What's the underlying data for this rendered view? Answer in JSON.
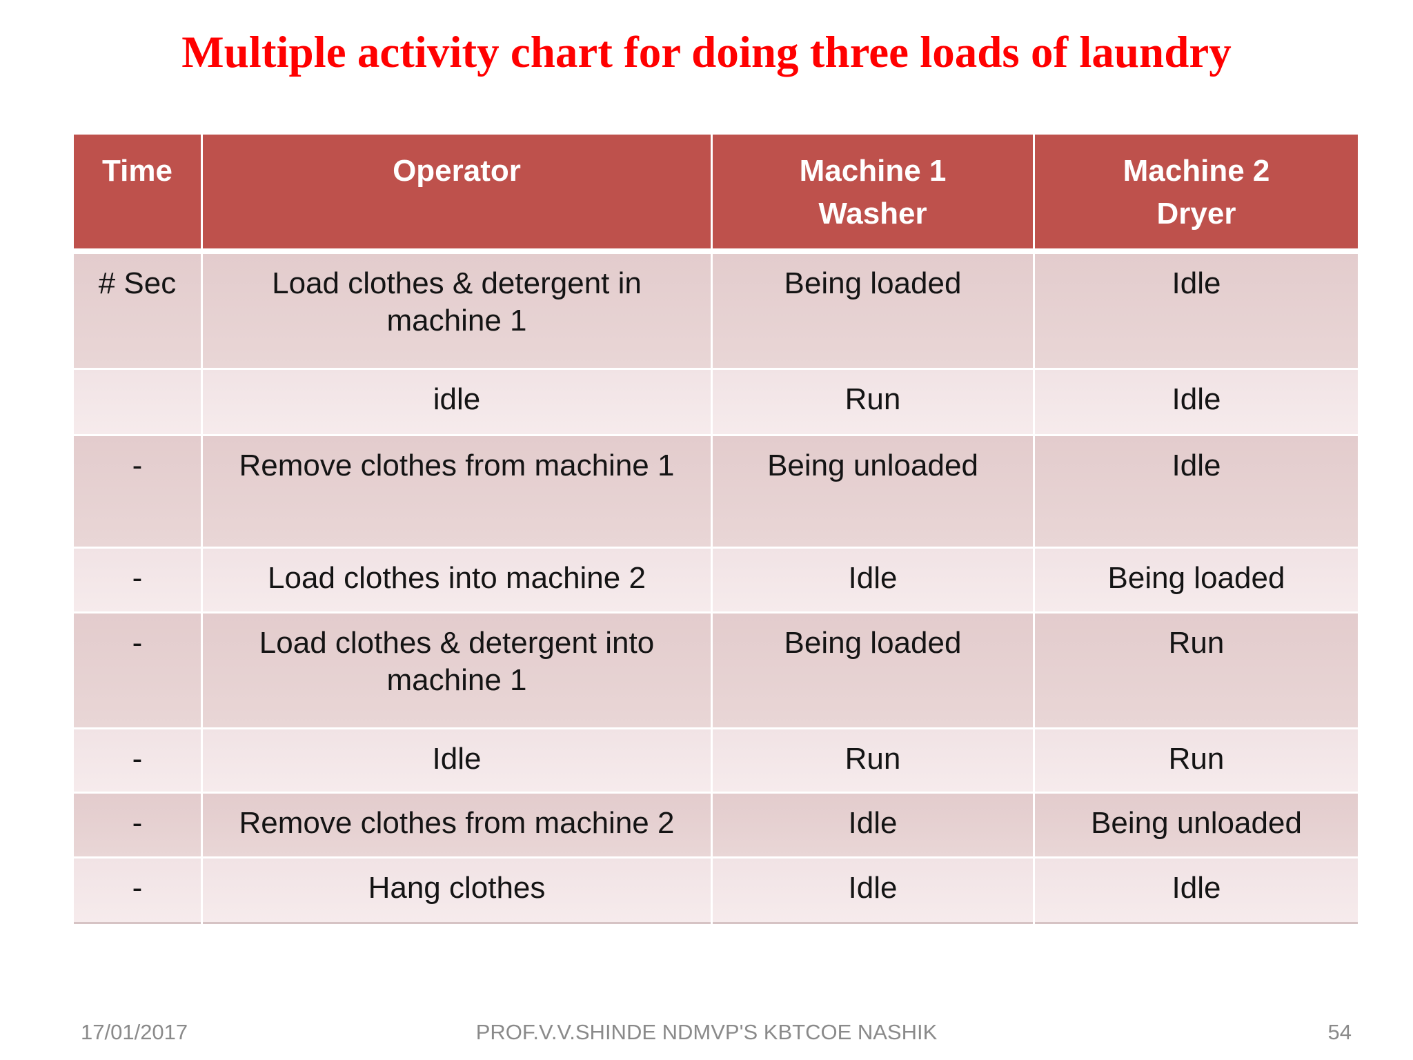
{
  "slide": {
    "title": "Multiple activity chart for doing three loads of laundry"
  },
  "table": {
    "header": {
      "time": "Time",
      "operator": "Operator",
      "machine1_line1": "Machine 1",
      "machine1_line2": "Washer",
      "machine2_line1": "Machine 2",
      "machine2_line2": "Dryer"
    },
    "rows": [
      {
        "time": "# Sec",
        "operator": "Load clothes & detergent in machine 1",
        "machine1": "Being loaded",
        "machine2": "Idle"
      },
      {
        "time": "",
        "operator": "idle",
        "machine1": "Run",
        "machine2": "Idle"
      },
      {
        "time": "-",
        "operator": "Remove clothes from machine 1",
        "machine1": "Being unloaded",
        "machine2": "Idle"
      },
      {
        "time": "-",
        "operator": "Load clothes into machine 2",
        "machine1": "Idle",
        "machine2": "Being loaded"
      },
      {
        "time": "-",
        "operator": "Load clothes & detergent into machine 1",
        "machine1": "Being loaded",
        "machine2": "Run"
      },
      {
        "time": "-",
        "operator": "Idle",
        "machine1": "Run",
        "machine2": "Run"
      },
      {
        "time": "-",
        "operator": "Remove clothes from machine 2",
        "machine1": "Idle",
        "machine2": "Being unloaded"
      },
      {
        "time": "-",
        "operator": "Hang clothes",
        "machine1": "Idle",
        "machine2": "Idle"
      }
    ],
    "colors": {
      "title_red": "#ff0000",
      "header_bg": "#be514c",
      "header_text": "#ffffff",
      "row_dark_bg": "#e6d0d1",
      "row_light_bg": "#f4e7e9",
      "grid_line": "#ffffff",
      "cell_text": "#141414",
      "footer_text": "#8a8a8a"
    }
  },
  "footer": {
    "date": "17/01/2017",
    "credit": "PROF.V.V.SHINDE NDMVP'S KBTCOE NASHIK",
    "page_number": "54"
  }
}
